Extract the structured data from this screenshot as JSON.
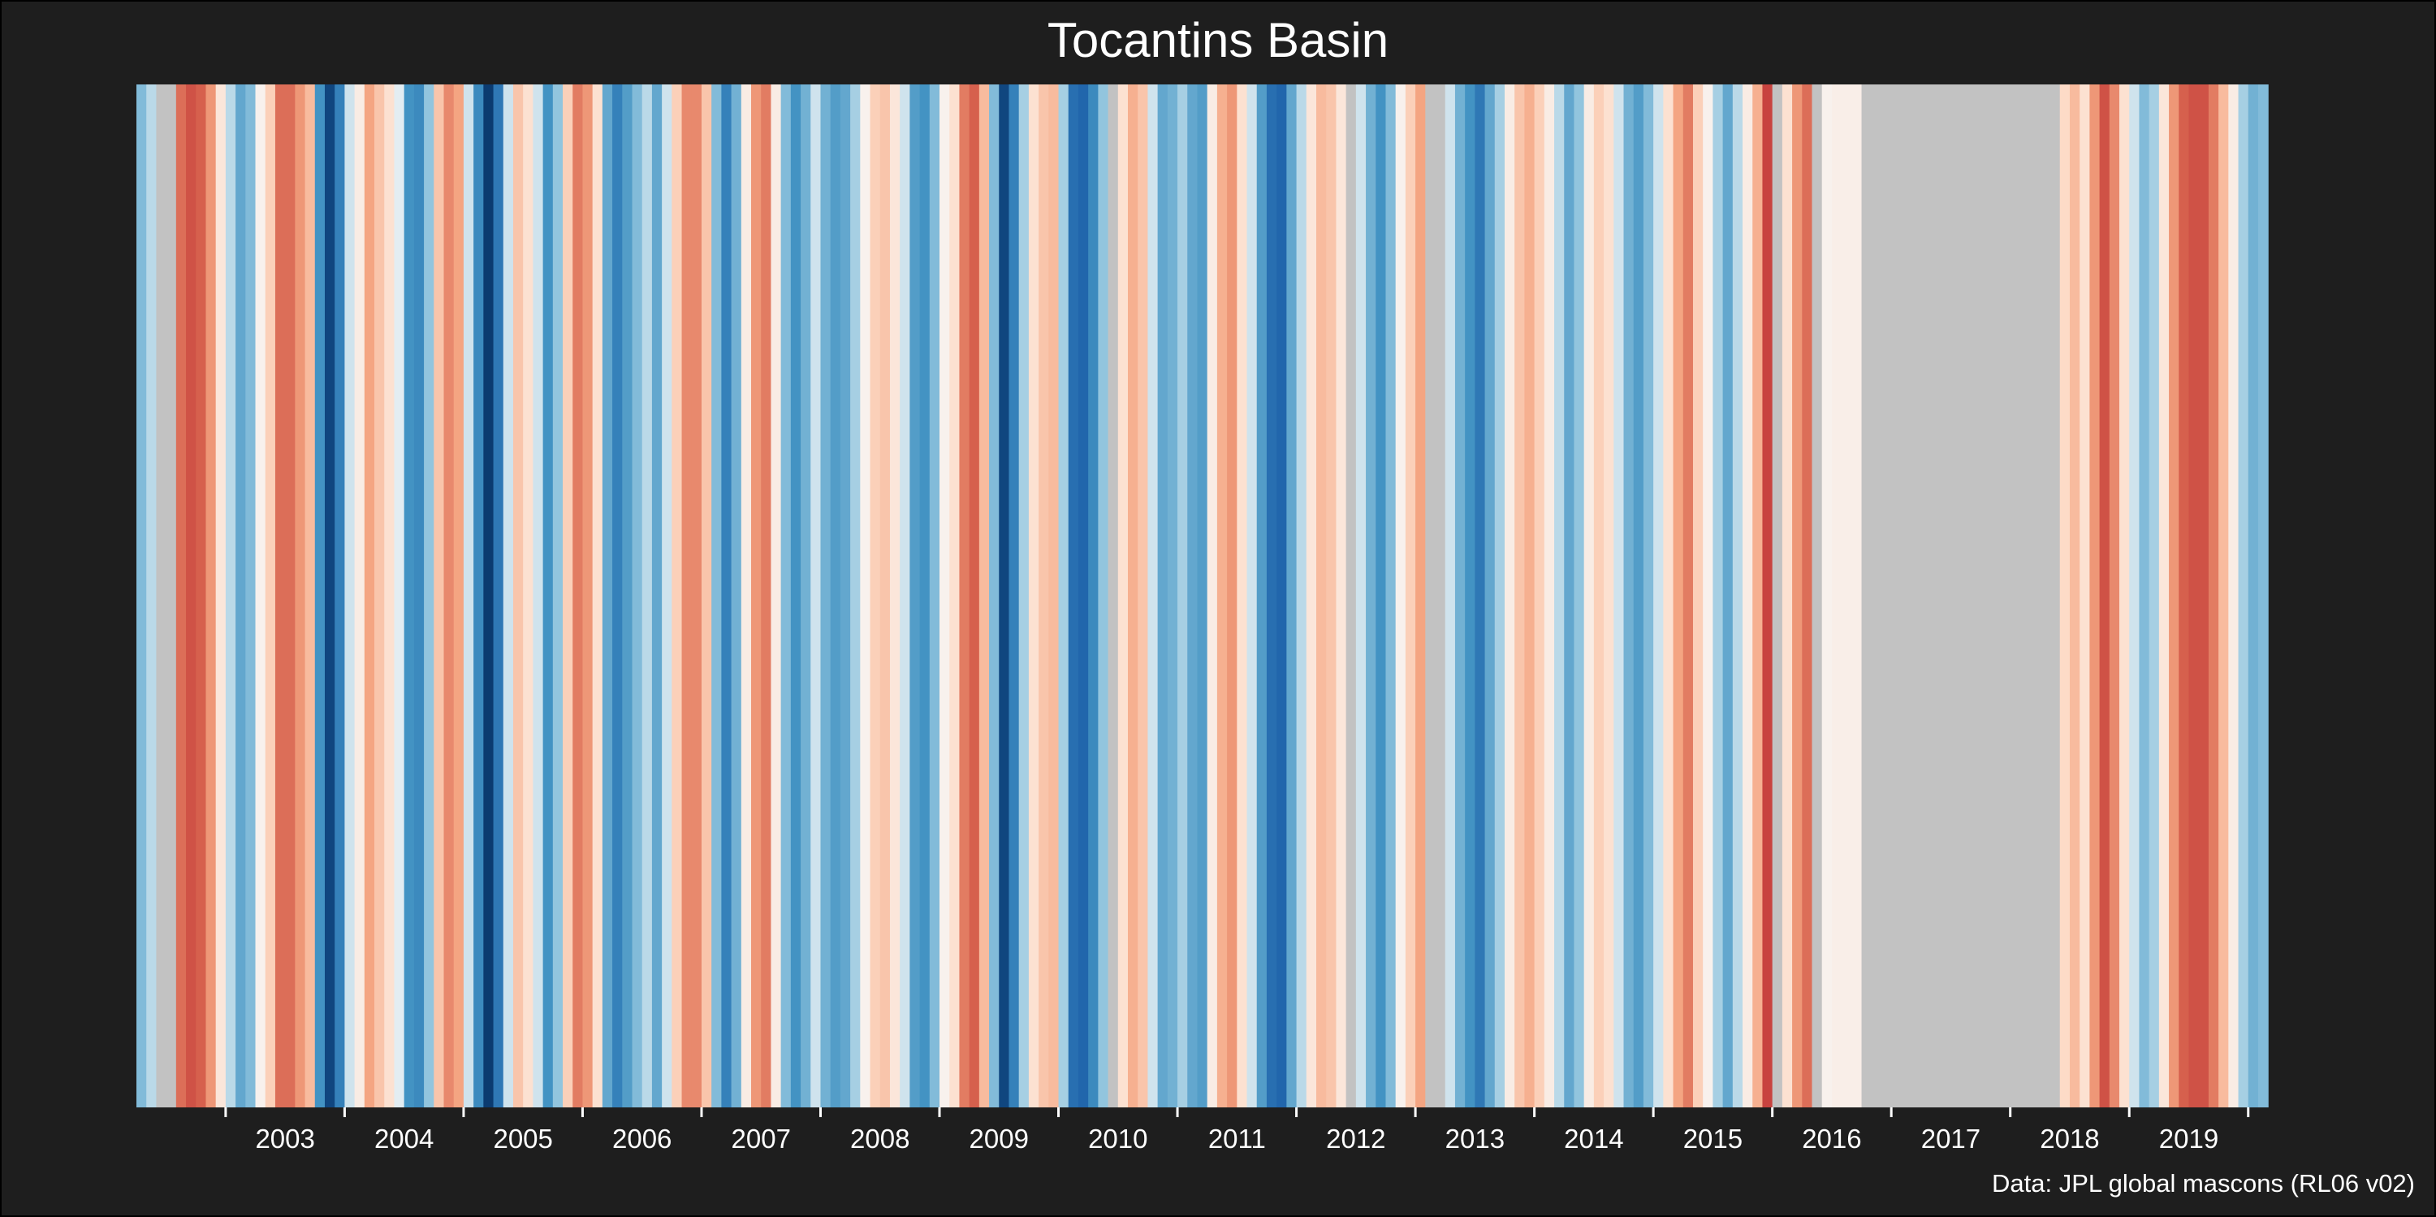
{
  "chart_data": {
    "type": "heatmap",
    "title": "Tocantins Basin",
    "caption": "Data: JPL global mascons (RL06 v02)",
    "x_range": [
      2002.25,
      2020.5
    ],
    "tick_labels": [
      "2003",
      "2004",
      "2005",
      "2006",
      "2007",
      "2008",
      "2009",
      "2010",
      "2011",
      "2012",
      "2013",
      "2014",
      "2015",
      "2016",
      "2017",
      "2018",
      "2019"
    ],
    "tick_years": [
      2003,
      2004,
      2005,
      2006,
      2007,
      2008,
      2009,
      2010,
      2011,
      2012,
      2013,
      2014,
      2015,
      2016,
      2017,
      2018,
      2019
    ],
    "grid": false,
    "legend": "none",
    "colormap": "RdBu (red = low, blue = high)",
    "missing_color": "#c2c2c2",
    "stripes": [
      {
        "date": "2002-04",
        "value": -0.3
      },
      {
        "date": "2002-05",
        "value": -0.15
      },
      {
        "date": "2002-06",
        "value": null
      },
      {
        "date": "2002-07",
        "value": null
      },
      {
        "date": "2002-08",
        "value": 0.7
      },
      {
        "date": "2002-09",
        "value": 0.8
      },
      {
        "date": "2002-10",
        "value": 0.75
      },
      {
        "date": "2002-11",
        "value": 0.55
      },
      {
        "date": "2002-12",
        "value": 0.15
      },
      {
        "date": "2003-01",
        "value": -0.15
      },
      {
        "date": "2003-02",
        "value": -0.4
      },
      {
        "date": "2003-03",
        "value": -0.3
      },
      {
        "date": "2003-04",
        "value": 0.05
      },
      {
        "date": "2003-05",
        "value": 0.3
      },
      {
        "date": "2003-06",
        "value": 0.7
      },
      {
        "date": "2003-07",
        "value": 0.7
      },
      {
        "date": "2003-08",
        "value": 0.55
      },
      {
        "date": "2003-09",
        "value": 0.4
      },
      {
        "date": "2003-10",
        "value": -0.5
      },
      {
        "date": "2003-11",
        "value": -0.9
      },
      {
        "date": "2003-12",
        "value": -0.6
      },
      {
        "date": "2004-01",
        "value": -0.1
      },
      {
        "date": "2004-02",
        "value": 0.1
      },
      {
        "date": "2004-03",
        "value": 0.5
      },
      {
        "date": "2004-04",
        "value": 0.35
      },
      {
        "date": "2004-05",
        "value": 0.2
      },
      {
        "date": "2004-06",
        "value": -0.05
      },
      {
        "date": "2004-07",
        "value": -0.5
      },
      {
        "date": "2004-08",
        "value": -0.55
      },
      {
        "date": "2004-09",
        "value": -0.25
      },
      {
        "date": "2004-10",
        "value": 0.35
      },
      {
        "date": "2004-11",
        "value": 0.6
      },
      {
        "date": "2004-12",
        "value": 0.5
      },
      {
        "date": "2005-01",
        "value": -0.1
      },
      {
        "date": "2005-02",
        "value": -0.55
      },
      {
        "date": "2005-03",
        "value": -0.95
      },
      {
        "date": "2005-04",
        "value": -0.65
      },
      {
        "date": "2005-05",
        "value": -0.1
      },
      {
        "date": "2005-06",
        "value": 0.35
      },
      {
        "date": "2005-07",
        "value": 0.2
      },
      {
        "date": "2005-08",
        "value": -0.1
      },
      {
        "date": "2005-09",
        "value": -0.5
      },
      {
        "date": "2005-10",
        "value": -0.25
      },
      {
        "date": "2005-11",
        "value": 0.3
      },
      {
        "date": "2005-12",
        "value": 0.65
      },
      {
        "date": "2006-01",
        "value": 0.55
      },
      {
        "date": "2006-02",
        "value": 0.2
      },
      {
        "date": "2006-03",
        "value": -0.4
      },
      {
        "date": "2006-04",
        "value": -0.6
      },
      {
        "date": "2006-05",
        "value": -0.45
      },
      {
        "date": "2006-06",
        "value": -0.3
      },
      {
        "date": "2006-07",
        "value": -0.15
      },
      {
        "date": "2006-08",
        "value": -0.4
      },
      {
        "date": "2006-09",
        "value": -0.1
      },
      {
        "date": "2006-10",
        "value": 0.3
      },
      {
        "date": "2006-11",
        "value": 0.6
      },
      {
        "date": "2006-12",
        "value": 0.6
      },
      {
        "date": "2007-01",
        "value": 0.35
      },
      {
        "date": "2007-02",
        "value": -0.3
      },
      {
        "date": "2007-03",
        "value": -0.6
      },
      {
        "date": "2007-04",
        "value": -0.35
      },
      {
        "date": "2007-05",
        "value": 0.1
      },
      {
        "date": "2007-06",
        "value": 0.55
      },
      {
        "date": "2007-07",
        "value": 0.65
      },
      {
        "date": "2007-08",
        "value": 0.1
      },
      {
        "date": "2007-09",
        "value": -0.3
      },
      {
        "date": "2007-10",
        "value": -0.5
      },
      {
        "date": "2007-11",
        "value": -0.35
      },
      {
        "date": "2007-12",
        "value": -0.1
      },
      {
        "date": "2008-01",
        "value": -0.35
      },
      {
        "date": "2008-02",
        "value": -0.45
      },
      {
        "date": "2008-03",
        "value": -0.4
      },
      {
        "date": "2008-04",
        "value": -0.2
      },
      {
        "date": "2008-05",
        "value": 0.05
      },
      {
        "date": "2008-06",
        "value": 0.3
      },
      {
        "date": "2008-07",
        "value": 0.35
      },
      {
        "date": "2008-08",
        "value": 0.15
      },
      {
        "date": "2008-09",
        "value": -0.1
      },
      {
        "date": "2008-10",
        "value": -0.45
      },
      {
        "date": "2008-11",
        "value": -0.5
      },
      {
        "date": "2008-12",
        "value": -0.3
      },
      {
        "date": "2009-01",
        "value": 0.05
      },
      {
        "date": "2009-02",
        "value": 0.2
      },
      {
        "date": "2009-03",
        "value": 0.65
      },
      {
        "date": "2009-04",
        "value": 0.75
      },
      {
        "date": "2009-05",
        "value": 0.4
      },
      {
        "date": "2009-06",
        "value": -0.3
      },
      {
        "date": "2009-07",
        "value": -0.9
      },
      {
        "date": "2009-08",
        "value": -0.6
      },
      {
        "date": "2009-09",
        "value": -0.2
      },
      {
        "date": "2009-10",
        "value": 0.2
      },
      {
        "date": "2009-11",
        "value": 0.35
      },
      {
        "date": "2009-12",
        "value": 0.4
      },
      {
        "date": "2010-01",
        "value": -0.2
      },
      {
        "date": "2010-02",
        "value": -0.7
      },
      {
        "date": "2010-03",
        "value": -0.75
      },
      {
        "date": "2010-04",
        "value": -0.55
      },
      {
        "date": "2010-05",
        "value": -0.25
      },
      {
        "date": "2010-06",
        "value": null
      },
      {
        "date": "2010-07",
        "value": 0.2
      },
      {
        "date": "2010-08",
        "value": 0.45
      },
      {
        "date": "2010-09",
        "value": 0.35
      },
      {
        "date": "2010-10",
        "value": -0.1
      },
      {
        "date": "2010-11",
        "value": -0.4
      },
      {
        "date": "2010-12",
        "value": -0.35
      },
      {
        "date": "2011-01",
        "value": -0.2
      },
      {
        "date": "2011-02",
        "value": -0.4
      },
      {
        "date": "2011-03",
        "value": -0.45
      },
      {
        "date": "2011-04",
        "value": 0.1
      },
      {
        "date": "2011-05",
        "value": 0.45
      },
      {
        "date": "2011-06",
        "value": 0.55
      },
      {
        "date": "2011-07",
        "value": 0.2
      },
      {
        "date": "2011-08",
        "value": -0.1
      },
      {
        "date": "2011-09",
        "value": -0.45
      },
      {
        "date": "2011-10",
        "value": -0.7
      },
      {
        "date": "2011-11",
        "value": -0.75
      },
      {
        "date": "2011-12",
        "value": -0.4
      },
      {
        "date": "2012-01",
        "value": -0.15
      },
      {
        "date": "2012-02",
        "value": 0.15
      },
      {
        "date": "2012-03",
        "value": 0.4
      },
      {
        "date": "2012-04",
        "value": 0.35
      },
      {
        "date": "2012-05",
        "value": 0.15
      },
      {
        "date": "2012-06",
        "value": null
      },
      {
        "date": "2012-07",
        "value": -0.1
      },
      {
        "date": "2012-08",
        "value": -0.35
      },
      {
        "date": "2012-09",
        "value": -0.5
      },
      {
        "date": "2012-10",
        "value": -0.3
      },
      {
        "date": "2012-11",
        "value": 0.05
      },
      {
        "date": "2012-12",
        "value": 0.3
      },
      {
        "date": "2013-01",
        "value": 0.5
      },
      {
        "date": "2013-02",
        "value": null
      },
      {
        "date": "2013-03",
        "value": null
      },
      {
        "date": "2013-04",
        "value": -0.1
      },
      {
        "date": "2013-05",
        "value": -0.35
      },
      {
        "date": "2013-06",
        "value": -0.5
      },
      {
        "date": "2013-07",
        "value": -0.65
      },
      {
        "date": "2013-08",
        "value": -0.4
      },
      {
        "date": "2013-09",
        "value": -0.2
      },
      {
        "date": "2013-10",
        "value": 0.1
      },
      {
        "date": "2013-11",
        "value": 0.35
      },
      {
        "date": "2013-12",
        "value": 0.45
      },
      {
        "date": "2014-01",
        "value": 0.3
      },
      {
        "date": "2014-02",
        "value": 0.1
      },
      {
        "date": "2014-03",
        "value": -0.15
      },
      {
        "date": "2014-04",
        "value": -0.4
      },
      {
        "date": "2014-05",
        "value": -0.25
      },
      {
        "date": "2014-06",
        "value": 0.1
      },
      {
        "date": "2014-07",
        "value": 0.3
      },
      {
        "date": "2014-08",
        "value": 0.2
      },
      {
        "date": "2014-09",
        "value": -0.1
      },
      {
        "date": "2014-10",
        "value": -0.35
      },
      {
        "date": "2014-11",
        "value": -0.45
      },
      {
        "date": "2014-12",
        "value": -0.3
      },
      {
        "date": "2015-01",
        "value": -0.1
      },
      {
        "date": "2015-02",
        "value": 0.2
      },
      {
        "date": "2015-03",
        "value": 0.5
      },
      {
        "date": "2015-04",
        "value": 0.65
      },
      {
        "date": "2015-05",
        "value": 0.3
      },
      {
        "date": "2015-06",
        "value": 0.05
      },
      {
        "date": "2015-07",
        "value": -0.2
      },
      {
        "date": "2015-08",
        "value": -0.4
      },
      {
        "date": "2015-09",
        "value": -0.15
      },
      {
        "date": "2015-10",
        "value": 0.1
      },
      {
        "date": "2015-11",
        "value": 0.45
      },
      {
        "date": "2015-12",
        "value": 0.85
      },
      {
        "date": "2016-01",
        "value": null
      },
      {
        "date": "2016-02",
        "value": 0.2
      },
      {
        "date": "2016-03",
        "value": 0.55
      },
      {
        "date": "2016-04",
        "value": 0.7
      },
      {
        "date": "2016-05",
        "value": null
      },
      {
        "date": "2016-06",
        "value": 0.05
      },
      {
        "date": "2016-07",
        "value": 0.08
      },
      {
        "date": "2016-08",
        "value": 0.08
      },
      {
        "date": "2016-09",
        "value": 0.08
      },
      {
        "date": "2016-10",
        "value": null
      },
      {
        "date": "2016-11",
        "value": null
      },
      {
        "date": "2016-12",
        "value": null
      },
      {
        "date": "2017-01",
        "value": null
      },
      {
        "date": "2017-02",
        "value": null
      },
      {
        "date": "2017-03",
        "value": null
      },
      {
        "date": "2017-04",
        "value": null
      },
      {
        "date": "2017-05",
        "value": null
      },
      {
        "date": "2017-06",
        "value": null
      },
      {
        "date": "2017-07",
        "value": null
      },
      {
        "date": "2017-08",
        "value": null
      },
      {
        "date": "2017-09",
        "value": null
      },
      {
        "date": "2017-10",
        "value": null
      },
      {
        "date": "2017-11",
        "value": null
      },
      {
        "date": "2017-12",
        "value": null
      },
      {
        "date": "2018-01",
        "value": null
      },
      {
        "date": "2018-02",
        "value": null
      },
      {
        "date": "2018-03",
        "value": null
      },
      {
        "date": "2018-04",
        "value": null
      },
      {
        "date": "2018-05",
        "value": null
      },
      {
        "date": "2018-06",
        "value": 0.25
      },
      {
        "date": "2018-07",
        "value": 0.4
      },
      {
        "date": "2018-08",
        "value": 0.2
      },
      {
        "date": "2018-09",
        "value": 0.55
      },
      {
        "date": "2018-10",
        "value": 0.8
      },
      {
        "date": "2018-11",
        "value": 0.6
      },
      {
        "date": "2018-12",
        "value": 0.2
      },
      {
        "date": "2019-01",
        "value": -0.1
      },
      {
        "date": "2019-02",
        "value": -0.3
      },
      {
        "date": "2019-03",
        "value": -0.2
      },
      {
        "date": "2019-04",
        "value": 0.15
      },
      {
        "date": "2019-05",
        "value": 0.55
      },
      {
        "date": "2019-06",
        "value": 0.75
      },
      {
        "date": "2019-07",
        "value": 0.8
      },
      {
        "date": "2019-08",
        "value": 0.8
      },
      {
        "date": "2019-09",
        "value": 0.65
      },
      {
        "date": "2019-10",
        "value": 0.4
      },
      {
        "date": "2019-11",
        "value": 0.1
      },
      {
        "date": "2019-12",
        "value": -0.2
      },
      {
        "date": "2020-01",
        "value": -0.35
      },
      {
        "date": "2020-02",
        "value": -0.3
      }
    ]
  }
}
